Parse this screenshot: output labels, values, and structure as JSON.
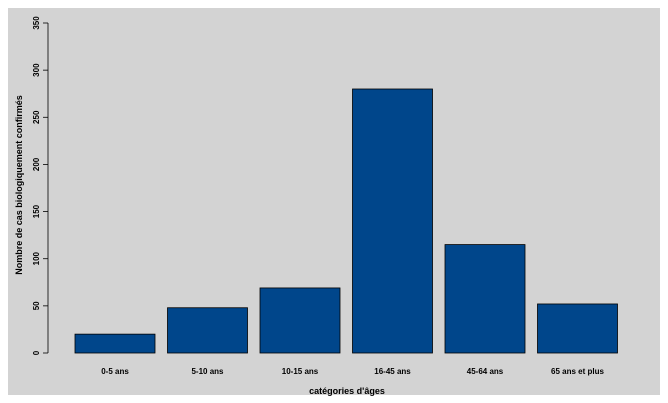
{
  "chart_data": {
    "type": "bar",
    "categories": [
      "0-5 ans",
      "5-10 ans",
      "10-15 ans",
      "16-45 ans",
      "45-64 ans",
      "65 ans et plus"
    ],
    "values": [
      20,
      48,
      69,
      280,
      115,
      52
    ],
    "xlabel": "catégories d'âges",
    "ylabel": "Nombre de cas biologiquement confirmés",
    "ylim": [
      0,
      350
    ],
    "yticks": [
      0,
      50,
      100,
      150,
      200,
      250,
      300,
      350
    ],
    "grid": false,
    "bar_color": "#00468b",
    "background_color": "#d3d3d3"
  }
}
